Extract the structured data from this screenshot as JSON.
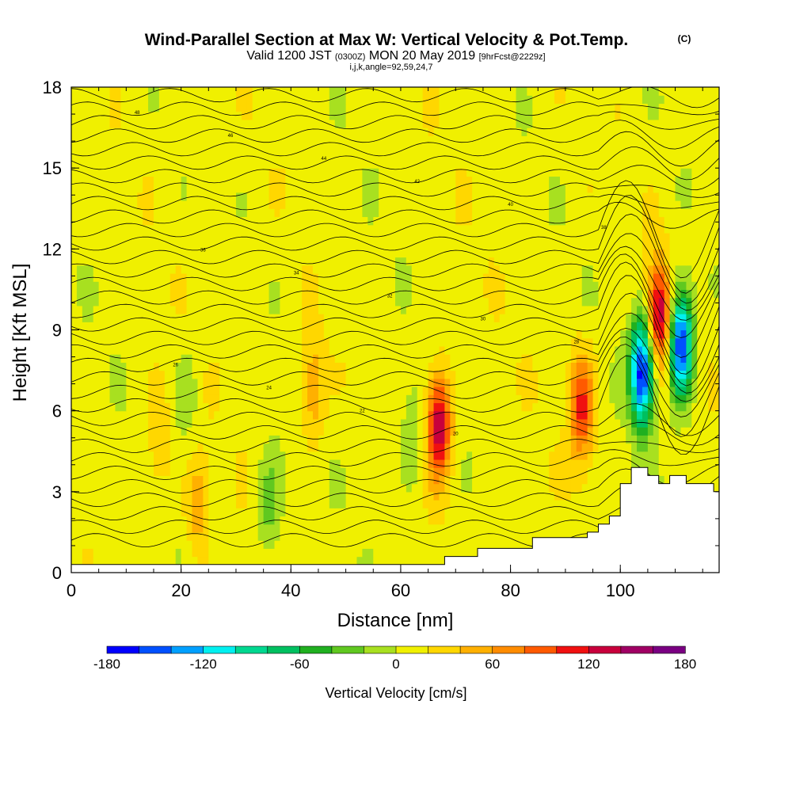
{
  "header": {
    "title": "Wind-Parallel Section at Max W: Vertical Velocity & Pot.Temp.",
    "title_tag": "(C)",
    "subtitle_a": "Valid 1200 JST",
    "subtitle_b": "(0300Z)",
    "subtitle_c": "MON 20 May 2019",
    "subtitle_d": "[9hrFcst@2229z]",
    "subtitle_line3": "i,j,k,angle=92,59,24,7"
  },
  "chart_data": {
    "type": "heatmap",
    "xlabel": "Distance [nm]",
    "ylabel": "Height [Kft MSL]",
    "xlim": [
      0,
      118
    ],
    "ylim": [
      0,
      18
    ],
    "x_ticks": [
      0,
      20,
      40,
      60,
      80,
      100
    ],
    "y_ticks": [
      0,
      3,
      6,
      9,
      12,
      15,
      18
    ],
    "colorbar": {
      "title": "Vertical Velocity [cm/s]",
      "range": [
        -180,
        180
      ],
      "step": 20,
      "tick_labels": [
        "-180",
        "-120",
        "-60",
        "0",
        "60",
        "120",
        "180"
      ],
      "colors": [
        "#0000ff",
        "#0050ff",
        "#00a0ff",
        "#00f0f0",
        "#00d890",
        "#00c060",
        "#20b020",
        "#60c820",
        "#a8e020",
        "#f0f000",
        "#ffd700",
        "#ffb000",
        "#ff8c00",
        "#ff5a00",
        "#f01010",
        "#c8003c",
        "#a00064",
        "#7a0082"
      ]
    },
    "background_velocity": 10,
    "updraft_downdraft_cores": [
      {
        "x": 67,
        "y": 5.5,
        "value": 130
      },
      {
        "x": 93,
        "y": 6.2,
        "value": 95
      },
      {
        "x": 44,
        "y": 6.8,
        "value": 50
      },
      {
        "x": 23,
        "y": 2.5,
        "value": 45
      },
      {
        "x": 16,
        "y": 5.0,
        "value": 35
      },
      {
        "x": 107,
        "y": 9.5,
        "value": 135
      },
      {
        "x": 104,
        "y": 7.5,
        "value": -185
      },
      {
        "x": 111,
        "y": 8.5,
        "value": -175
      },
      {
        "x": 36,
        "y": 2.5,
        "value": -40
      },
      {
        "x": 62,
        "y": 5.0,
        "value": -30
      },
      {
        "x": 21,
        "y": 6.5,
        "value": -25
      }
    ],
    "terrain_steps": [
      [
        0,
        0.3
      ],
      [
        68,
        0.3
      ],
      [
        68,
        0.6
      ],
      [
        74,
        0.6
      ],
      [
        74,
        0.9
      ],
      [
        84,
        0.9
      ],
      [
        84,
        1.3
      ],
      [
        94,
        1.3
      ],
      [
        94,
        1.5
      ],
      [
        96,
        1.5
      ],
      [
        96,
        1.8
      ],
      [
        98,
        1.8
      ],
      [
        98,
        2.1
      ],
      [
        100,
        2.1
      ],
      [
        100,
        3.3
      ],
      [
        102,
        3.3
      ],
      [
        102,
        3.9
      ],
      [
        105,
        3.9
      ],
      [
        105,
        3.6
      ],
      [
        107,
        3.6
      ],
      [
        107,
        3.3
      ],
      [
        109,
        3.3
      ],
      [
        109,
        3.6
      ],
      [
        112,
        3.6
      ],
      [
        112,
        3.3
      ],
      [
        117,
        3.3
      ],
      [
        117,
        3.0
      ],
      [
        118,
        3.0
      ]
    ],
    "contour_labels": [
      "48",
      "46",
      "44",
      "42",
      "40",
      "38",
      "36",
      "34",
      "32",
      "30",
      "28",
      "26",
      "24",
      "22",
      "20"
    ]
  }
}
